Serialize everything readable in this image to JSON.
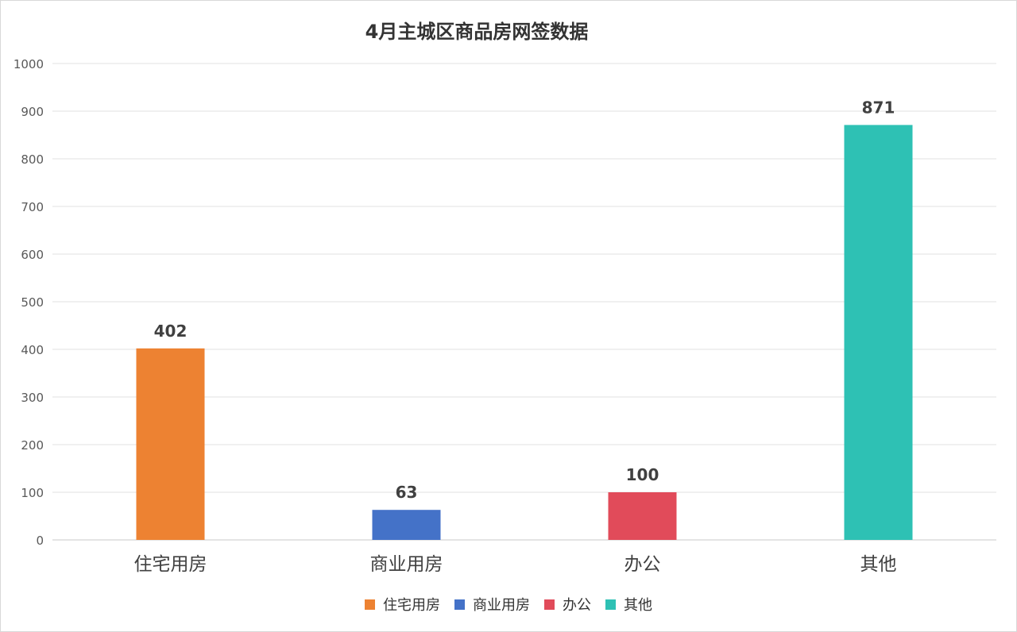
{
  "chart_data": {
    "type": "bar",
    "title": "4月主城区商品房网签数据",
    "categories": [
      "住宅用房",
      "商业用房",
      "办公",
      "其他"
    ],
    "values": [
      402,
      63,
      100,
      871
    ],
    "colors": [
      "#ED8232",
      "#4472C8",
      "#E14B5A",
      "#2EC1B4"
    ],
    "ylim": [
      0,
      1000
    ],
    "yticks": [
      0,
      100,
      200,
      300,
      400,
      500,
      600,
      700,
      800,
      900,
      1000
    ],
    "grid": true,
    "legend": {
      "position": "bottom",
      "entries": [
        "住宅用房",
        "商业用房",
        "办公",
        "其他"
      ]
    },
    "data_labels": [
      "402",
      "63",
      "100",
      "871"
    ]
  }
}
